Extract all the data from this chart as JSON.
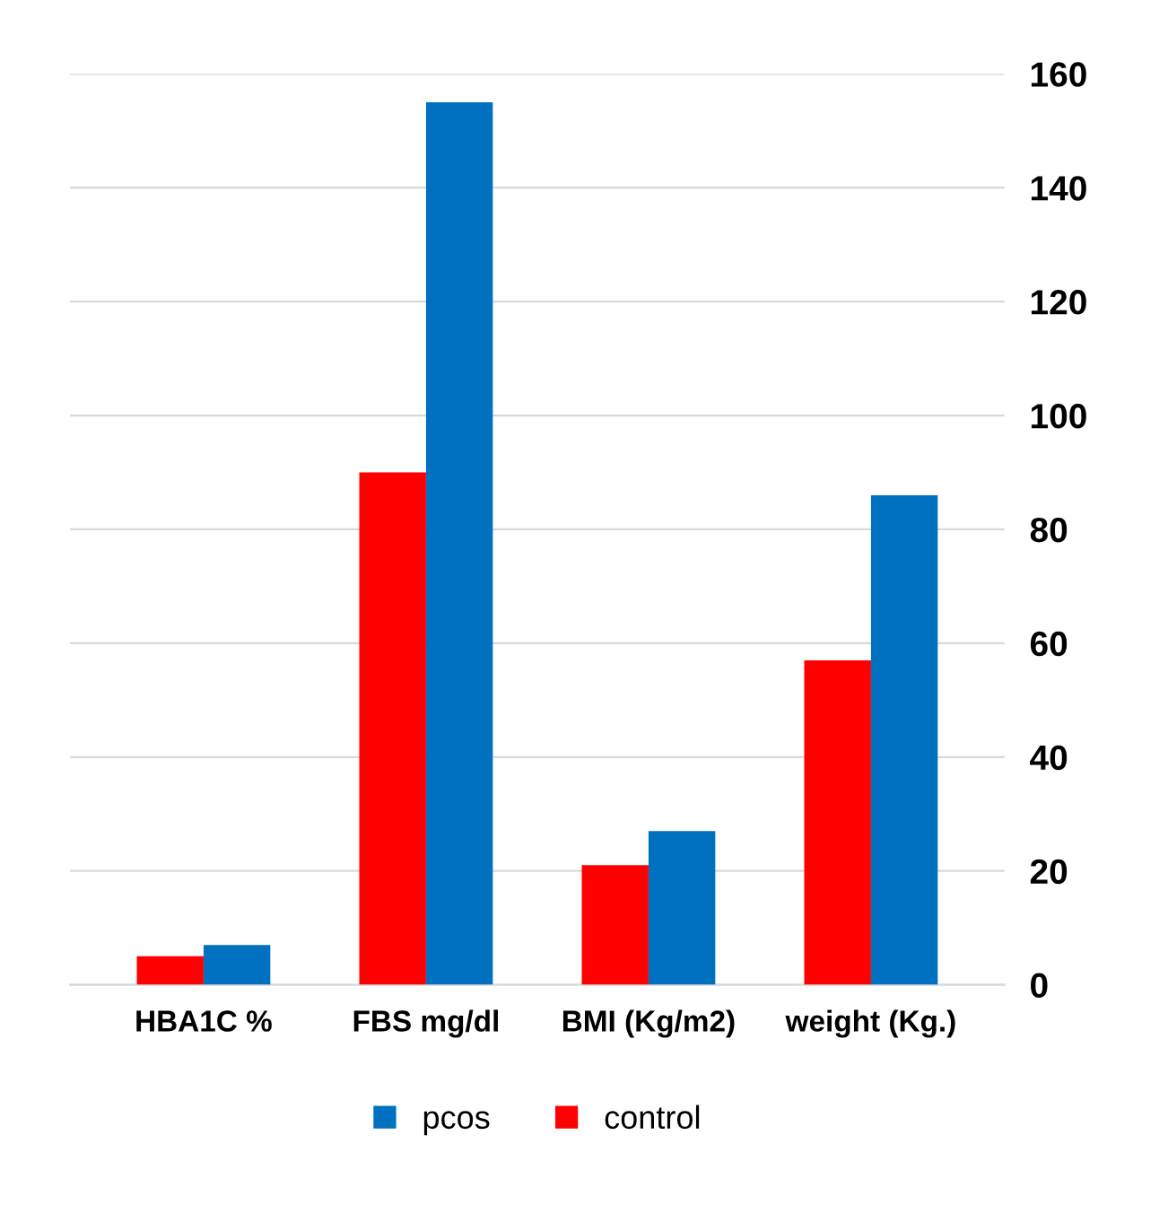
{
  "chart_data": {
    "type": "bar",
    "categories": [
      "HBA1C %",
      "FBS mg/dl",
      "BMI (Kg/m2)",
      "weight (Kg.)"
    ],
    "series": [
      {
        "name": "pcos",
        "color": "#0070c0",
        "values": [
          7,
          155,
          27,
          86
        ]
      },
      {
        "name": "control",
        "color": "#ff0000",
        "values": [
          5,
          90,
          21,
          57
        ]
      }
    ],
    "ylim": [
      0,
      160
    ],
    "yticks": [
      0,
      20,
      40,
      60,
      80,
      100,
      120,
      140,
      160
    ],
    "grid": "y",
    "legend": "bottom"
  }
}
